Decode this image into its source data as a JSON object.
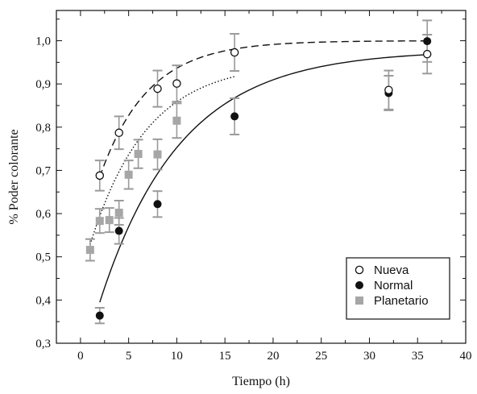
{
  "chart_data": {
    "type": "scatter",
    "xlabel": "Tiempo (h)",
    "ylabel": "% Poder colorante",
    "xlim": [
      -2.5,
      40
    ],
    "ylim": [
      0.3,
      1.07
    ],
    "xticks": [
      0,
      5,
      10,
      15,
      20,
      25,
      30,
      35,
      40
    ],
    "xtick_labels": [
      "0",
      "5",
      "10",
      "15",
      "20",
      "25",
      "30",
      "35",
      "40"
    ],
    "yticks": [
      0.3,
      0.4,
      0.5,
      0.6,
      0.7,
      0.8,
      0.9,
      1.0
    ],
    "ytick_labels": [
      "0,3",
      "0,4",
      "0,5",
      "0,6",
      "0,7",
      "0,8",
      "0,9",
      "1,0"
    ],
    "grid": false,
    "legend_position": "bottom-right",
    "series": [
      {
        "name": "Nueva",
        "marker": "open-circle",
        "color": "#111111",
        "error_color": "#9a9a9a",
        "x": [
          2,
          4,
          8,
          10,
          16,
          32,
          36
        ],
        "y": [
          0.688,
          0.787,
          0.889,
          0.901,
          0.973,
          0.886,
          0.969
        ],
        "yerr": [
          0.035,
          0.038,
          0.042,
          0.042,
          0.043,
          0.045,
          0.045
        ]
      },
      {
        "name": "Normal",
        "marker": "filled-circle",
        "color": "#111111",
        "error_color": "#9a9a9a",
        "x": [
          2,
          4,
          8,
          16,
          32,
          36
        ],
        "y": [
          0.364,
          0.56,
          0.622,
          0.825,
          0.879,
          0.999
        ],
        "yerr": [
          0.018,
          0.03,
          0.03,
          0.042,
          0.04,
          0.048
        ]
      },
      {
        "name": "Planetario",
        "marker": "filled-square",
        "color": "#a6a6a6",
        "error_color": "#9a9a9a",
        "x": [
          1,
          2,
          3,
          4,
          5,
          6,
          8,
          10
        ],
        "y": [
          0.516,
          0.583,
          0.585,
          0.602,
          0.69,
          0.738,
          0.737,
          0.815
        ],
        "yerr": [
          0.025,
          0.028,
          0.028,
          0.028,
          0.033,
          0.033,
          0.035,
          0.04
        ]
      }
    ],
    "fit_curves": [
      {
        "series": "Nueva",
        "style": "dashed",
        "x_range": [
          2,
          36
        ],
        "a": 1.0,
        "b": 0.47,
        "k": 0.2
      },
      {
        "series": "Normal",
        "style": "solid",
        "x_range": [
          2,
          36
        ],
        "a": 0.978,
        "b": 0.74,
        "k": 0.119
      },
      {
        "series": "Planetario",
        "style": "dotted",
        "x_range": [
          1,
          16
        ],
        "a": 0.95,
        "b": 0.5,
        "k": 0.17
      }
    ]
  }
}
